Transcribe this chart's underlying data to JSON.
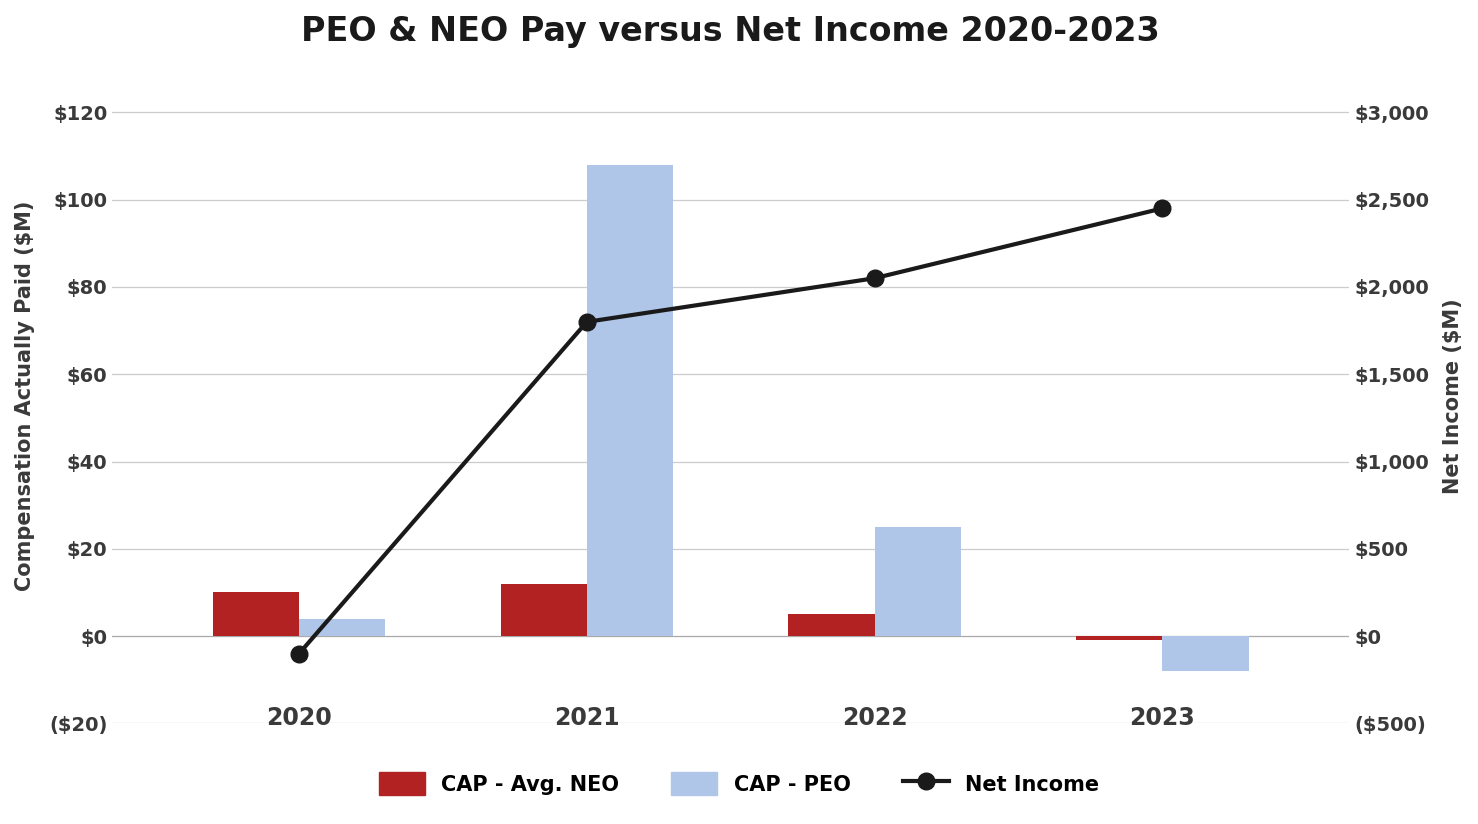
{
  "title": "PEO & NEO Pay versus Net Income 2020-2023",
  "years": [
    "2020",
    "2021",
    "2022",
    "2023"
  ],
  "cap_neo": [
    10.0,
    12.0,
    5.0,
    -1.0
  ],
  "cap_peo": [
    4.0,
    108.0,
    25.0,
    -8.0
  ],
  "net_income": [
    -100,
    1800,
    2050,
    2450
  ],
  "neo_color": "#B22222",
  "peo_color": "#AFC6E9",
  "line_color": "#1a1a1a",
  "left_ylim": [
    -20,
    130
  ],
  "right_ylim": [
    -500,
    3250
  ],
  "left_yticks": [
    -20,
    0,
    20,
    40,
    60,
    80,
    100,
    120
  ],
  "left_yticklabels": [
    "($20)",
    "$0",
    "$20",
    "$40",
    "$60",
    "$80",
    "$100",
    "$120"
  ],
  "right_yticks": [
    -500,
    0,
    500,
    1000,
    1500,
    2000,
    2500,
    3000
  ],
  "right_yticklabels": [
    "($500)",
    "$0",
    "$500",
    "$1,000",
    "$1,500",
    "$2,000",
    "$2,500",
    "$3,000"
  ],
  "ylabel_left": "Compensation Actually Paid ($M)",
  "ylabel_right": "Net Income ($M)",
  "legend_labels": [
    "CAP - Avg. NEO",
    "CAP - PEO",
    "Net Income"
  ],
  "bar_width": 0.3,
  "background_color": "#ffffff",
  "grid_color": "#cccccc",
  "title_fontsize": 24,
  "axis_label_fontsize": 15,
  "tick_fontsize": 14,
  "legend_fontsize": 15,
  "year_label_fontsize": 17
}
